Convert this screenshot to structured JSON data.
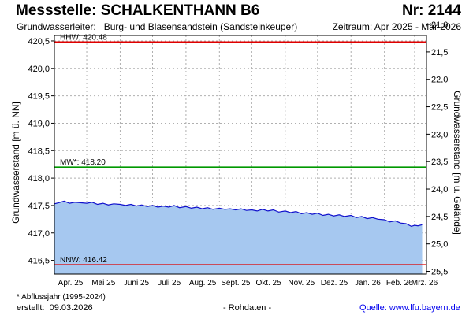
{
  "header": {
    "title": "Messstelle: SCHALKENTHANN B6",
    "number": "Nr: 2144",
    "aquifer_label": "Grundwasserleiter:",
    "aquifer_value": "Burg- und Blasensandstein (Sandsteinkeuper)",
    "period": "Zeitraum: Apr 2025 - Mär 2026"
  },
  "footer": {
    "footnote": "* Abflussjahr (1995-2024)",
    "created_label": "erstellt:",
    "created_date": "09.03.2026",
    "rawdata": "- Rohdaten -",
    "source_label": "Quelle:",
    "source_url": "www.lfu.bayern.de"
  },
  "colors": {
    "area_fill": "#a6c8f0",
    "series_line": "#1010cc",
    "hhw_line": "#e00000",
    "nnw_line": "#e00000",
    "mw_line": "#009900",
    "grid": "#b0b0b0"
  },
  "chart_data": {
    "type": "area",
    "ylabel_left": "Grundwasserstand [m ü. NN]",
    "ylabel_right": "Grundwasserstand [m u. Gelände]",
    "ylim": [
      416.25,
      420.6
    ],
    "right_axis_ylim": [
      25.55,
      21.2
    ],
    "y_ticks_left": [
      "416,5",
      "417,0",
      "417,5",
      "418,0",
      "418,5",
      "419,0",
      "419,5",
      "420,0",
      "420,5"
    ],
    "y_ticks_left_values": [
      416.5,
      417.0,
      417.5,
      418.0,
      418.5,
      419.0,
      419.5,
      420.0,
      420.5
    ],
    "y_ticks_right": [
      "21,0",
      "21,5",
      "22,0",
      "22,5",
      "23,0",
      "23,5",
      "24,0",
      "24,5",
      "25,0",
      "25,5"
    ],
    "y_ticks_right_values": [
      21.0,
      21.5,
      22.0,
      22.5,
      23.0,
      23.5,
      24.0,
      24.5,
      25.0,
      25.5
    ],
    "x_ticks": [
      "Apr. 25",
      "Mai 25",
      "Juni 25",
      "Juli 25",
      "Aug. 25",
      "Sept. 25",
      "Okt. 25",
      "Nov. 25",
      "Dez. 25",
      "Jan. 26",
      "Feb. 26",
      "Mrz. 26"
    ],
    "x_range_days": 345,
    "grid": true,
    "reference_lines": [
      {
        "label": "HHW: 420.48",
        "value": 420.48,
        "color": "#e00000"
      },
      {
        "label": "MW*: 418.20",
        "value": 418.2,
        "color": "#009900"
      },
      {
        "label": "NNW: 416.42",
        "value": 416.42,
        "color": "#e00000"
      }
    ],
    "series": [
      {
        "dates": [
          "2025-04-01",
          "2025-04-05",
          "2025-04-10",
          "2025-04-15",
          "2025-04-20",
          "2025-04-25",
          "2025-05-01",
          "2025-05-06",
          "2025-05-11",
          "2025-05-16",
          "2025-05-21",
          "2025-05-26",
          "2025-06-01",
          "2025-06-06",
          "2025-06-11",
          "2025-06-16",
          "2025-06-21",
          "2025-06-26",
          "2025-07-01",
          "2025-07-06",
          "2025-07-11",
          "2025-07-16",
          "2025-07-21",
          "2025-07-26",
          "2025-08-01",
          "2025-08-06",
          "2025-08-11",
          "2025-08-16",
          "2025-08-21",
          "2025-08-26",
          "2025-09-01",
          "2025-09-06",
          "2025-09-11",
          "2025-09-16",
          "2025-09-21",
          "2025-09-26",
          "2025-10-01",
          "2025-10-06",
          "2025-10-11",
          "2025-10-16",
          "2025-10-21",
          "2025-10-26",
          "2025-11-01",
          "2025-11-06",
          "2025-11-11",
          "2025-11-16",
          "2025-11-21",
          "2025-11-26",
          "2025-12-01",
          "2025-12-06",
          "2025-12-11",
          "2025-12-16",
          "2025-12-21",
          "2025-12-26",
          "2026-01-01",
          "2026-01-06",
          "2026-01-11",
          "2026-01-16",
          "2026-01-21",
          "2026-01-26",
          "2026-02-01",
          "2026-02-06",
          "2026-02-11",
          "2026-02-16",
          "2026-02-21",
          "2026-02-26",
          "2026-03-01",
          "2026-03-04",
          "2026-03-08"
        ],
        "values": [
          417.53,
          417.55,
          417.58,
          417.54,
          417.56,
          417.55,
          417.54,
          417.56,
          417.52,
          417.54,
          417.51,
          417.53,
          417.52,
          417.5,
          417.52,
          417.49,
          417.51,
          417.48,
          417.5,
          417.47,
          417.49,
          417.47,
          417.5,
          417.46,
          417.48,
          417.45,
          417.47,
          417.44,
          417.46,
          417.43,
          417.45,
          417.43,
          417.44,
          417.42,
          417.44,
          417.41,
          417.42,
          417.4,
          417.43,
          417.4,
          417.42,
          417.38,
          417.4,
          417.37,
          417.39,
          417.35,
          417.37,
          417.34,
          417.36,
          417.32,
          417.34,
          417.31,
          417.33,
          417.3,
          417.32,
          417.28,
          417.3,
          417.26,
          417.28,
          417.25,
          417.24,
          417.2,
          417.22,
          417.18,
          417.17,
          417.12,
          417.14,
          417.13,
          417.15
        ]
      }
    ]
  }
}
